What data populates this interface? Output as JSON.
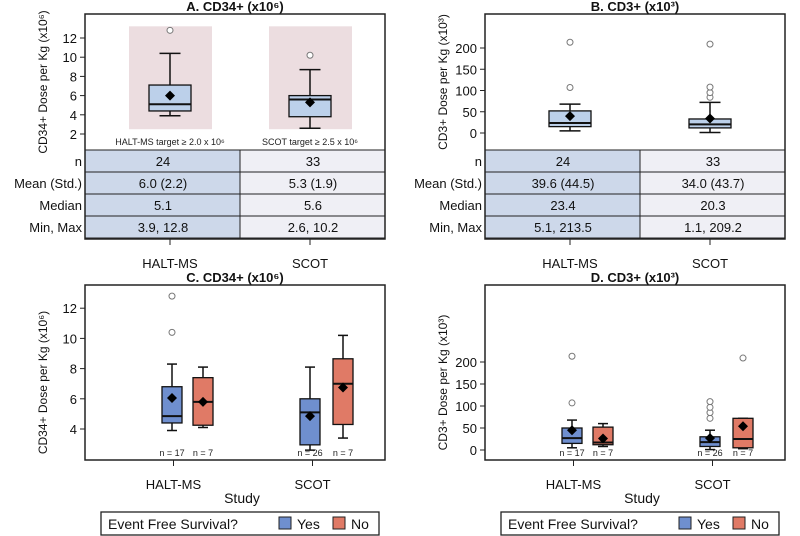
{
  "colors": {
    "yes": "#6f8fcf",
    "no": "#e07a66",
    "single": "#bcd0ea",
    "target": "#ecdde0",
    "tableA": "#cdd8ea",
    "tableB": "#efeff5"
  },
  "legend": {
    "title": "Event Free Survival?",
    "yes": "Yes",
    "no": "No"
  },
  "chart_data": [
    {
      "type": "box",
      "title": "A. CD34+ (x10⁶)",
      "ylabel": "CD34+ Dose per Kg (x10⁶)",
      "ylim": [
        1.5,
        13.5
      ],
      "yticks": [
        2,
        4,
        6,
        8,
        10,
        12
      ],
      "categories": [
        "HALT-MS",
        "SCOT"
      ],
      "targets": [
        "HALT-MS target ≥ 2.0 x 10⁶",
        "SCOT target ≥ 2.5 x 10⁶"
      ],
      "boxes": [
        {
          "group": "HALT-MS",
          "min": 3.9,
          "q1": 4.4,
          "median": 5.1,
          "q3": 7.1,
          "max": 10.4,
          "mean": 6.0,
          "outliers": [
            12.8
          ]
        },
        {
          "group": "SCOT",
          "min": 2.6,
          "q1": 3.8,
          "median": 5.6,
          "q3": 6.0,
          "max": 8.7,
          "mean": 5.3,
          "outliers": [
            10.2
          ]
        }
      ],
      "table": {
        "rows": [
          "n",
          "Mean (Std.)",
          "Median",
          "Min, Max"
        ],
        "values": [
          [
            "24",
            "33"
          ],
          [
            "6.0 (2.2)",
            "5.3 (1.9)"
          ],
          [
            "5.1",
            "5.6"
          ],
          [
            "3.9, 12.8",
            "2.6, 10.2"
          ]
        ]
      }
    },
    {
      "type": "box",
      "title": "B. CD3+ (x10³)",
      "ylabel": "CD3+ Dose per Kg (x10³)",
      "ylim": [
        -10,
        230
      ],
      "yticks": [
        0,
        50,
        100,
        150,
        200
      ],
      "categories": [
        "HALT-MS",
        "SCOT"
      ],
      "boxes": [
        {
          "group": "HALT-MS",
          "min": 5.1,
          "q1": 15,
          "median": 23.4,
          "q3": 52,
          "max": 68,
          "mean": 39.6,
          "outliers": [
            107,
            213.5
          ]
        },
        {
          "group": "SCOT",
          "min": 1.1,
          "q1": 12,
          "median": 20.3,
          "q3": 33,
          "max": 72,
          "mean": 34.0,
          "outliers": [
            84,
            95,
            108,
            209.2
          ]
        }
      ],
      "table": {
        "rows": [
          "n",
          "Mean (Std.)",
          "Median",
          "Min, Max"
        ],
        "values": [
          [
            "24",
            "33"
          ],
          [
            "39.6 (44.5)",
            "34.0 (43.7)"
          ],
          [
            "23.4",
            "20.3"
          ],
          [
            "5.1, 213.5",
            "1.1, 209.2"
          ]
        ]
      }
    },
    {
      "type": "box",
      "title": "C. CD34+ (x10⁶)",
      "ylabel": "CD34+ Dose per Kg (x10⁶)",
      "xlabel": "Study",
      "yticks": [
        4,
        6,
        8,
        10,
        12
      ],
      "categories": [
        "HALT-MS",
        "SCOT"
      ],
      "boxes": [
        {
          "group": "HALT-MS",
          "efs": "yes",
          "n": "n = 17",
          "min": 3.9,
          "q1": 4.4,
          "median": 4.85,
          "q3": 6.8,
          "max": 8.3,
          "mean": 6.05,
          "outliers": [
            10.4,
            12.8
          ]
        },
        {
          "group": "HALT-MS",
          "efs": "no",
          "n": "n = 7",
          "min": 4.1,
          "q1": 4.25,
          "median": 5.8,
          "q3": 7.4,
          "max": 8.1,
          "mean": 5.8,
          "outliers": []
        },
        {
          "group": "SCOT",
          "efs": "yes",
          "n": "n = 26",
          "min": 2.6,
          "q1": 2.95,
          "median": 5.1,
          "q3": 6.0,
          "max": 8.1,
          "mean": 4.85,
          "outliers": []
        },
        {
          "group": "SCOT",
          "efs": "no",
          "n": "n = 7",
          "min": 3.4,
          "q1": 4.3,
          "median": 7.0,
          "q3": 8.65,
          "max": 10.2,
          "mean": 6.75,
          "outliers": []
        }
      ]
    },
    {
      "type": "box",
      "title": "D. CD3+ (x10³)",
      "ylabel": "CD3+ Dose per Kg (x10³)",
      "xlabel": "Study",
      "yticks": [
        0,
        50,
        100,
        150,
        200
      ],
      "categories": [
        "HALT-MS",
        "SCOT"
      ],
      "boxes": [
        {
          "group": "HALT-MS",
          "efs": "yes",
          "n": "n = 17",
          "min": 5,
          "q1": 15,
          "median": 27,
          "q3": 50,
          "max": 68,
          "mean": 45,
          "outliers": [
            107,
            213
          ]
        },
        {
          "group": "HALT-MS",
          "efs": "no",
          "n": "n = 7",
          "min": 8,
          "q1": 12,
          "median": 17,
          "q3": 52,
          "max": 60,
          "mean": 26,
          "outliers": []
        },
        {
          "group": "SCOT",
          "efs": "yes",
          "n": "n = 26",
          "min": 1,
          "q1": 8,
          "median": 18,
          "q3": 30,
          "max": 45,
          "mean": 27,
          "outliers": [
            72,
            85,
            97,
            110
          ]
        },
        {
          "group": "SCOT",
          "efs": "no",
          "n": "n = 7",
          "min": 3,
          "q1": 5,
          "median": 25,
          "q3": 72,
          "max": 72,
          "mean": 54,
          "outliers": [
            209
          ]
        }
      ]
    }
  ]
}
